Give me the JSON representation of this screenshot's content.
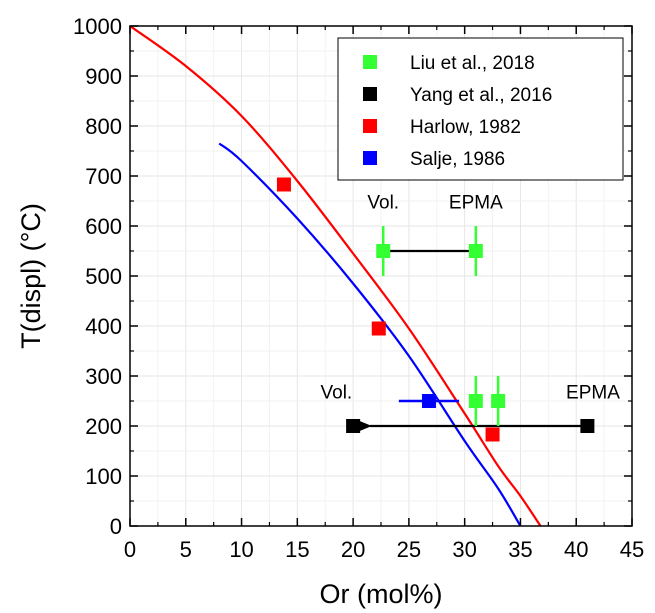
{
  "chart_data": {
    "type": "scatter",
    "xlabel": "Or (mol%)",
    "ylabel": "T(displ) (°C)",
    "xlim": [
      0,
      45
    ],
    "ylim": [
      0,
      1000
    ],
    "xticks": [
      0,
      5,
      10,
      15,
      20,
      25,
      30,
      35,
      40,
      45
    ],
    "yticks": [
      0,
      100,
      200,
      300,
      400,
      500,
      600,
      700,
      800,
      900,
      1000
    ],
    "grid": true,
    "legend_position": "top-right",
    "curves": [
      {
        "name": "Harlow, 1982",
        "color": "#ff0000",
        "points": [
          [
            0,
            1000
          ],
          [
            5,
            920
          ],
          [
            10,
            820
          ],
          [
            15,
            690
          ],
          [
            20,
            545
          ],
          [
            25,
            395
          ],
          [
            30,
            225
          ],
          [
            33,
            120
          ],
          [
            35,
            60
          ],
          [
            36.8,
            0
          ]
        ]
      },
      {
        "name": "Salje, 1986",
        "color": "#0000ff",
        "points": [
          [
            8,
            765
          ],
          [
            10,
            730
          ],
          [
            15,
            615
          ],
          [
            20,
            485
          ],
          [
            25,
            340
          ],
          [
            30,
            170
          ],
          [
            33,
            75
          ],
          [
            35,
            0
          ]
        ]
      }
    ],
    "series": [
      {
        "name": "Liu et al., 2018",
        "color": "#33ff33",
        "points": [
          {
            "x": 22.7,
            "y": 550,
            "yerr": 50
          },
          {
            "x": 31,
            "y": 550,
            "yerr": 50
          },
          {
            "x": 31,
            "y": 250,
            "yerr": 50
          },
          {
            "x": 33,
            "y": 250,
            "yerr": 50
          }
        ]
      },
      {
        "name": "Yang et al., 2016",
        "color": "#000000",
        "points": [
          {
            "x": 20,
            "y": 200
          },
          {
            "x": 41,
            "y": 200
          }
        ]
      },
      {
        "name": "Harlow, 1982",
        "color": "#ff0000",
        "points": [
          {
            "x": 13.8,
            "y": 683
          },
          {
            "x": 22.3,
            "y": 395
          },
          {
            "x": 32.5,
            "y": 183
          }
        ]
      },
      {
        "name": "Salje, 1986",
        "color": "#0000ff",
        "points": [
          {
            "x": 26.8,
            "y": 250,
            "xerr": 2.7
          }
        ]
      }
    ],
    "annotations": [
      {
        "text": "Vol.",
        "x": 22.7,
        "y": 635
      },
      {
        "text": "EPMA",
        "x": 31,
        "y": 635
      },
      {
        "text": "Vol.",
        "x": 18.5,
        "y": 255
      },
      {
        "text": "EPMA",
        "x": 41.5,
        "y": 255
      }
    ],
    "arrows": [
      {
        "from": [
          31,
          550
        ],
        "to": [
          23.2,
          550
        ]
      },
      {
        "from": [
          41,
          200
        ],
        "to": [
          21.5,
          200
        ]
      }
    ]
  }
}
